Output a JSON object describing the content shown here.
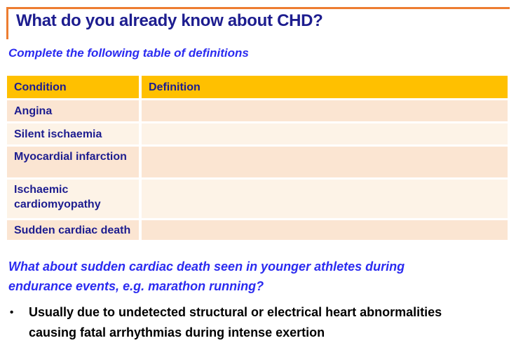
{
  "page": {
    "title": "What do you already know about CHD?",
    "subtitle": "Complete the following table of definitions"
  },
  "table": {
    "headers": [
      "Condition",
      "Definition"
    ],
    "rows": [
      {
        "condition": "Angina",
        "definition": ""
      },
      {
        "condition": "Silent ischaemia",
        "definition": ""
      },
      {
        "condition": "Myocardial infarction",
        "definition": ""
      },
      {
        "condition": "Ischaemic cardiomyopathy",
        "definition": ""
      },
      {
        "condition": "Sudden cardiac death",
        "definition": ""
      }
    ]
  },
  "question": {
    "text": "What about sudden cardiac death seen in younger athletes during\nendurance events, e.g. marathon running?"
  },
  "bullets": [
    {
      "marker": "•",
      "text": "Usually due to undetected structural or electrical heart abnormalities\ncausing fatal arrhythmias during intense exertion"
    }
  ],
  "colors": {
    "accent_orange": "#ED7D31",
    "table_header_gold": "#FFC000",
    "row_peach": "#FBE5D2",
    "row_cream": "#FDF3E7",
    "navy_text": "#1D1D8F",
    "blue_text": "#2B2BF0",
    "body_text": "#000000",
    "background": "#FFFFFF"
  }
}
